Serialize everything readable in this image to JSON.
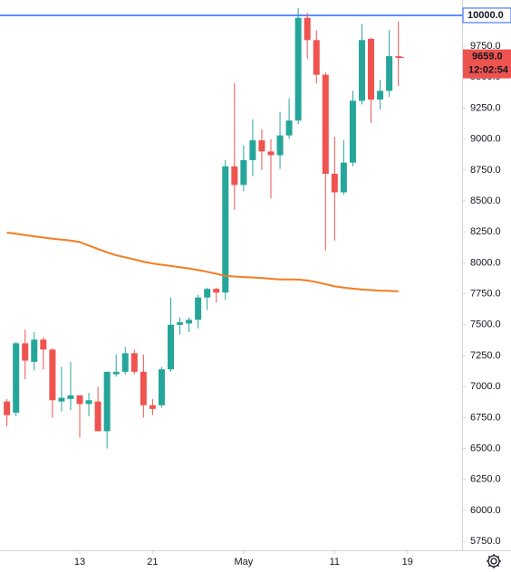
{
  "chart_data": {
    "type": "candlestick",
    "x": [
      1,
      2,
      3,
      4,
      5,
      6,
      7,
      8,
      9,
      10,
      11,
      12,
      13,
      14,
      15,
      16,
      17,
      18,
      19,
      20,
      21,
      22,
      23,
      24,
      25,
      26,
      27,
      28,
      29,
      30,
      31,
      32,
      33,
      34,
      35,
      36,
      37,
      38,
      39,
      40,
      41,
      42,
      43,
      44
    ],
    "open": [
      6880,
      6790,
      7350,
      7200,
      7380,
      7300,
      6880,
      6900,
      6930,
      6860,
      6880,
      6640,
      7100,
      7120,
      7270,
      7120,
      6850,
      6850,
      7140,
      7500,
      7510,
      7540,
      7720,
      7790,
      7760,
      8780,
      8630,
      8830,
      8990,
      8900,
      8870,
      9030,
      9150,
      9980,
      9800,
      9520,
      8720,
      8570,
      8810,
      9310,
      9810,
      9320,
      9390,
      9670
    ],
    "high": [
      6900,
      7360,
      7460,
      7440,
      7400,
      7310,
      7160,
      7200,
      6930,
      6950,
      7000,
      7120,
      7260,
      7320,
      7300,
      7260,
      6900,
      7160,
      7720,
      7560,
      7560,
      7740,
      7800,
      7800,
      8830,
      9450,
      8950,
      9160,
      9080,
      9000,
      9220,
      9330,
      10060,
      10020,
      9880,
      9540,
      9020,
      8990,
      9390,
      9930,
      9820,
      9480,
      9880,
      9950
    ],
    "low": [
      6680,
      6760,
      7060,
      7130,
      7140,
      6750,
      6800,
      6810,
      6590,
      6760,
      6640,
      6500,
      7080,
      7100,
      7100,
      6750,
      6770,
      6830,
      7120,
      7420,
      7440,
      7470,
      7620,
      7680,
      7700,
      8430,
      8580,
      8700,
      8750,
      8520,
      8760,
      9000,
      9120,
      9650,
      9450,
      8100,
      8180,
      8550,
      8780,
      9280,
      9130,
      9240,
      9340,
      9430
    ],
    "close": [
      6770,
      7350,
      7210,
      7380,
      7300,
      6890,
      6910,
      6930,
      6860,
      6890,
      6640,
      7120,
      7120,
      7270,
      7120,
      6850,
      6820,
      7140,
      7500,
      7520,
      7540,
      7720,
      7790,
      7760,
      8780,
      8630,
      8830,
      8990,
      8900,
      8870,
      9030,
      9150,
      9980,
      9800,
      9520,
      8720,
      8570,
      8810,
      9310,
      9800,
      9320,
      9390,
      9670,
      9659
    ],
    "up_color": "#26a69a",
    "down_color": "#ef5350",
    "moving_average": {
      "color": "#f57c1f",
      "values": [
        8245,
        8235,
        8225,
        8215,
        8205,
        8196,
        8188,
        8180,
        8168,
        8140,
        8112,
        8085,
        8062,
        8045,
        8028,
        8010,
        7995,
        7985,
        7975,
        7965,
        7955,
        7942,
        7928,
        7912,
        7896,
        7890,
        7886,
        7882,
        7878,
        7872,
        7866,
        7866,
        7865,
        7858,
        7845,
        7828,
        7810,
        7800,
        7792,
        7785,
        7780,
        7776,
        7774,
        7770
      ]
    },
    "xlim": [
      0.24,
      51
    ],
    "xticks": [
      {
        "value": 9,
        "label": "13"
      },
      {
        "value": 17,
        "label": "21"
      },
      {
        "value": 27,
        "label": "May"
      },
      {
        "value": 37,
        "label": "11"
      },
      {
        "value": 45,
        "label": "19"
      }
    ],
    "ylim": [
      5678,
      10124
    ],
    "yticks": [
      {
        "value": 5750,
        "label": "5750.0"
      },
      {
        "value": 6000,
        "label": "6000.0"
      },
      {
        "value": 6250,
        "label": "6250.0"
      },
      {
        "value": 6500,
        "label": "6500.0"
      },
      {
        "value": 6750,
        "label": "6750.0"
      },
      {
        "value": 7000,
        "label": "7000.0"
      },
      {
        "value": 7250,
        "label": "7250.0"
      },
      {
        "value": 7500,
        "label": "7500.0"
      },
      {
        "value": 7750,
        "label": "7750.0"
      },
      {
        "value": 8000,
        "label": "8000.0"
      },
      {
        "value": 8250,
        "label": "8250.0"
      },
      {
        "value": 8500,
        "label": "8500.0"
      },
      {
        "value": 8750,
        "label": "8750.0"
      },
      {
        "value": 9000,
        "label": "9000.0"
      },
      {
        "value": 9250,
        "label": "9250.0"
      },
      {
        "value": 9500,
        "label": "9500.0"
      },
      {
        "value": 9750,
        "label": "9750.0"
      }
    ],
    "hline": {
      "value": 10000,
      "label": "10000.0",
      "color": "#2962ff"
    },
    "last_price": {
      "value": 9659,
      "label": "9659.0",
      "countdown": "12:02:54",
      "color": "#ef5350"
    }
  }
}
